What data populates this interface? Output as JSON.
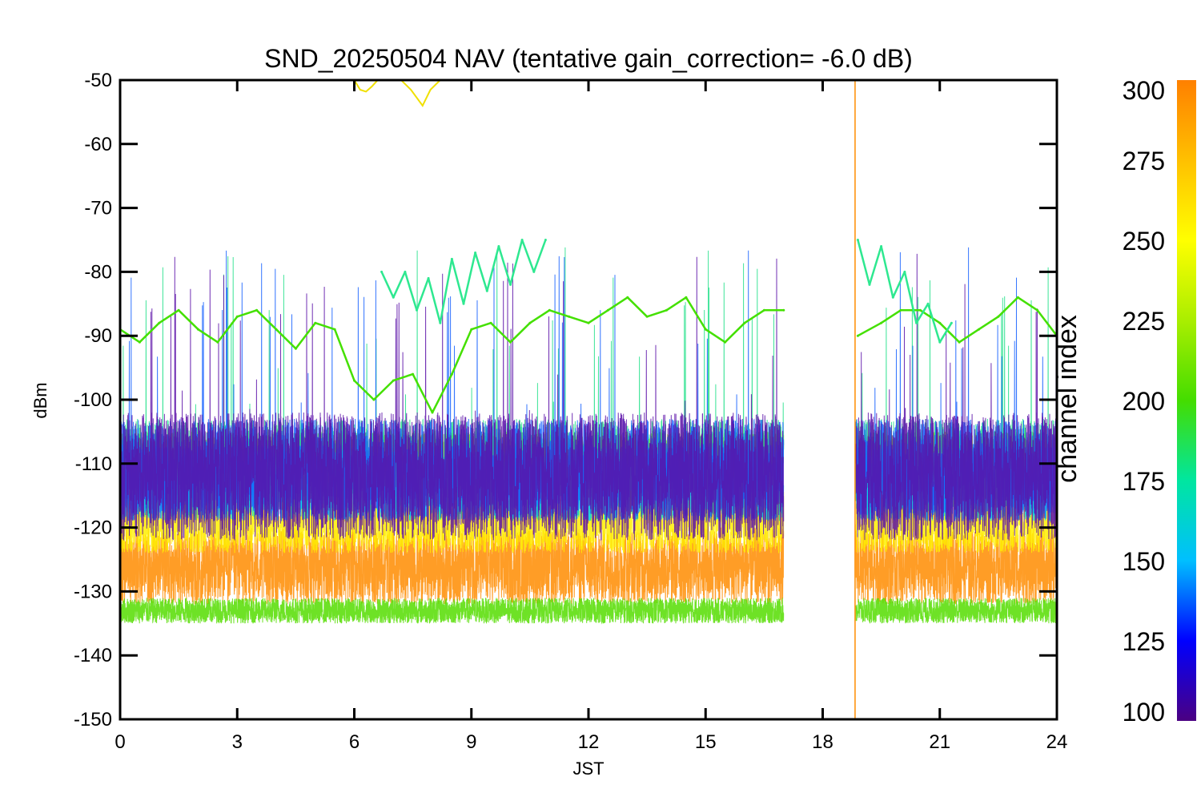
{
  "chart_data": {
    "type": "line",
    "title": "SND_20250504 NAV (tentative gain_correction= -6.0 dB)",
    "xlabel": "JST",
    "ylabel": "dBm",
    "xlim": [
      0,
      24
    ],
    "ylim": [
      -150,
      -50
    ],
    "x_ticks": [
      "0",
      "3",
      "6",
      "9",
      "12",
      "15",
      "18",
      "21",
      "24"
    ],
    "y_ticks": [
      "-50",
      "-60",
      "-70",
      "-80",
      "-90",
      "-100",
      "-110",
      "-120",
      "-130",
      "-140",
      "-150"
    ],
    "data_gap_hours": [
      17.0,
      18.85
    ],
    "grid": false,
    "colorbar": {
      "label": "channel index",
      "range": [
        100,
        300
      ],
      "ticks": [
        "300",
        "275",
        "250",
        "225",
        "200",
        "175",
        "150",
        "125",
        "100"
      ],
      "colormap": [
        "#4b0082",
        "#0000ff",
        "#00bfff",
        "#00e6a0",
        "#44dd00",
        "#aaee00",
        "#ffff00",
        "#ffc000",
        "#ff8000"
      ]
    },
    "series": [
      {
        "channel": 290,
        "color": "#ff8c00",
        "mean_dbm": -126,
        "spread_dbm": 6
      },
      {
        "channel": 265,
        "color": "#ffee00",
        "mean_dbm": -119,
        "spread_dbm": 5
      },
      {
        "channel": 255,
        "color": "#99ee00",
        "mean_dbm": -108,
        "spread_dbm": 3
      },
      {
        "channel": 240,
        "color": "#55dd00",
        "mean_dbm": -133,
        "spread_dbm": 2
      },
      {
        "channel": 205,
        "color": "#22e08a",
        "mean_dbm": -111,
        "spread_dbm": 8
      },
      {
        "channel": 170,
        "color": "#00d0ff",
        "mean_dbm": -113,
        "spread_dbm": 6
      },
      {
        "channel": 140,
        "color": "#1560ff",
        "mean_dbm": -111,
        "spread_dbm": 8
      },
      {
        "channel": 110,
        "color": "#5a0fa8",
        "mean_dbm": -112,
        "spread_dbm": 10
      },
      {
        "channel": 240,
        "color": "#44e000",
        "x": [
          0,
          0.5,
          1,
          1.5,
          2,
          2.5,
          3,
          3.5,
          4,
          4.5,
          5,
          5.5,
          6,
          6.5,
          7,
          7.5,
          8,
          8.5,
          9,
          9.5,
          10,
          10.5,
          11,
          11.5,
          12,
          12.5,
          13,
          13.5,
          14,
          14.5,
          15,
          15.5,
          16,
          16.5,
          17,
          18.9,
          19.5,
          20,
          20.5,
          21,
          21.5,
          22,
          22.5,
          23,
          23.5,
          24
        ],
        "values": [
          -89,
          -91,
          -88,
          -86,
          -89,
          -91,
          -87,
          -86,
          -89,
          -92,
          -88,
          -89,
          -97,
          -100,
          -97,
          -96,
          -102,
          -96,
          -89,
          -88,
          -91,
          -88,
          -86,
          -87,
          -88,
          -86,
          -84,
          -87,
          -86,
          -84,
          -89,
          -91,
          -88,
          -86,
          -86,
          -90,
          -88,
          -86,
          -86,
          -88,
          -91,
          -89,
          -87,
          -84,
          -86,
          -90
        ]
      },
      {
        "channel": 210,
        "color": "#2ee890",
        "x": [
          6.7,
          7,
          7.3,
          7.6,
          7.9,
          8.2,
          8.5,
          8.8,
          9.1,
          9.4,
          9.7,
          10,
          10.3,
          10.6,
          10.9,
          18.9,
          19.2,
          19.5,
          19.8,
          20.1,
          20.4,
          20.7,
          21,
          21.3
        ],
        "values": [
          -80,
          -84,
          -80,
          -86,
          -81,
          -88,
          -78,
          -85,
          -77,
          -83,
          -76,
          -82,
          -75,
          -80,
          -75,
          -75,
          -82,
          -76,
          -84,
          -80,
          -88,
          -85,
          -91,
          -88
        ]
      }
    ],
    "annotations": [
      {
        "x": [
          6.0,
          6.15,
          6.3,
          6.45,
          6.6
        ],
        "values": [
          -50,
          -51.5,
          -51.8,
          -51,
          -50
        ],
        "color": "#f0e000"
      },
      {
        "x": [
          7.2,
          7.45,
          7.75,
          7.95,
          8.2
        ],
        "values": [
          -50,
          -51.5,
          -54,
          -51.5,
          -50
        ],
        "color": "#f0e000"
      }
    ]
  }
}
